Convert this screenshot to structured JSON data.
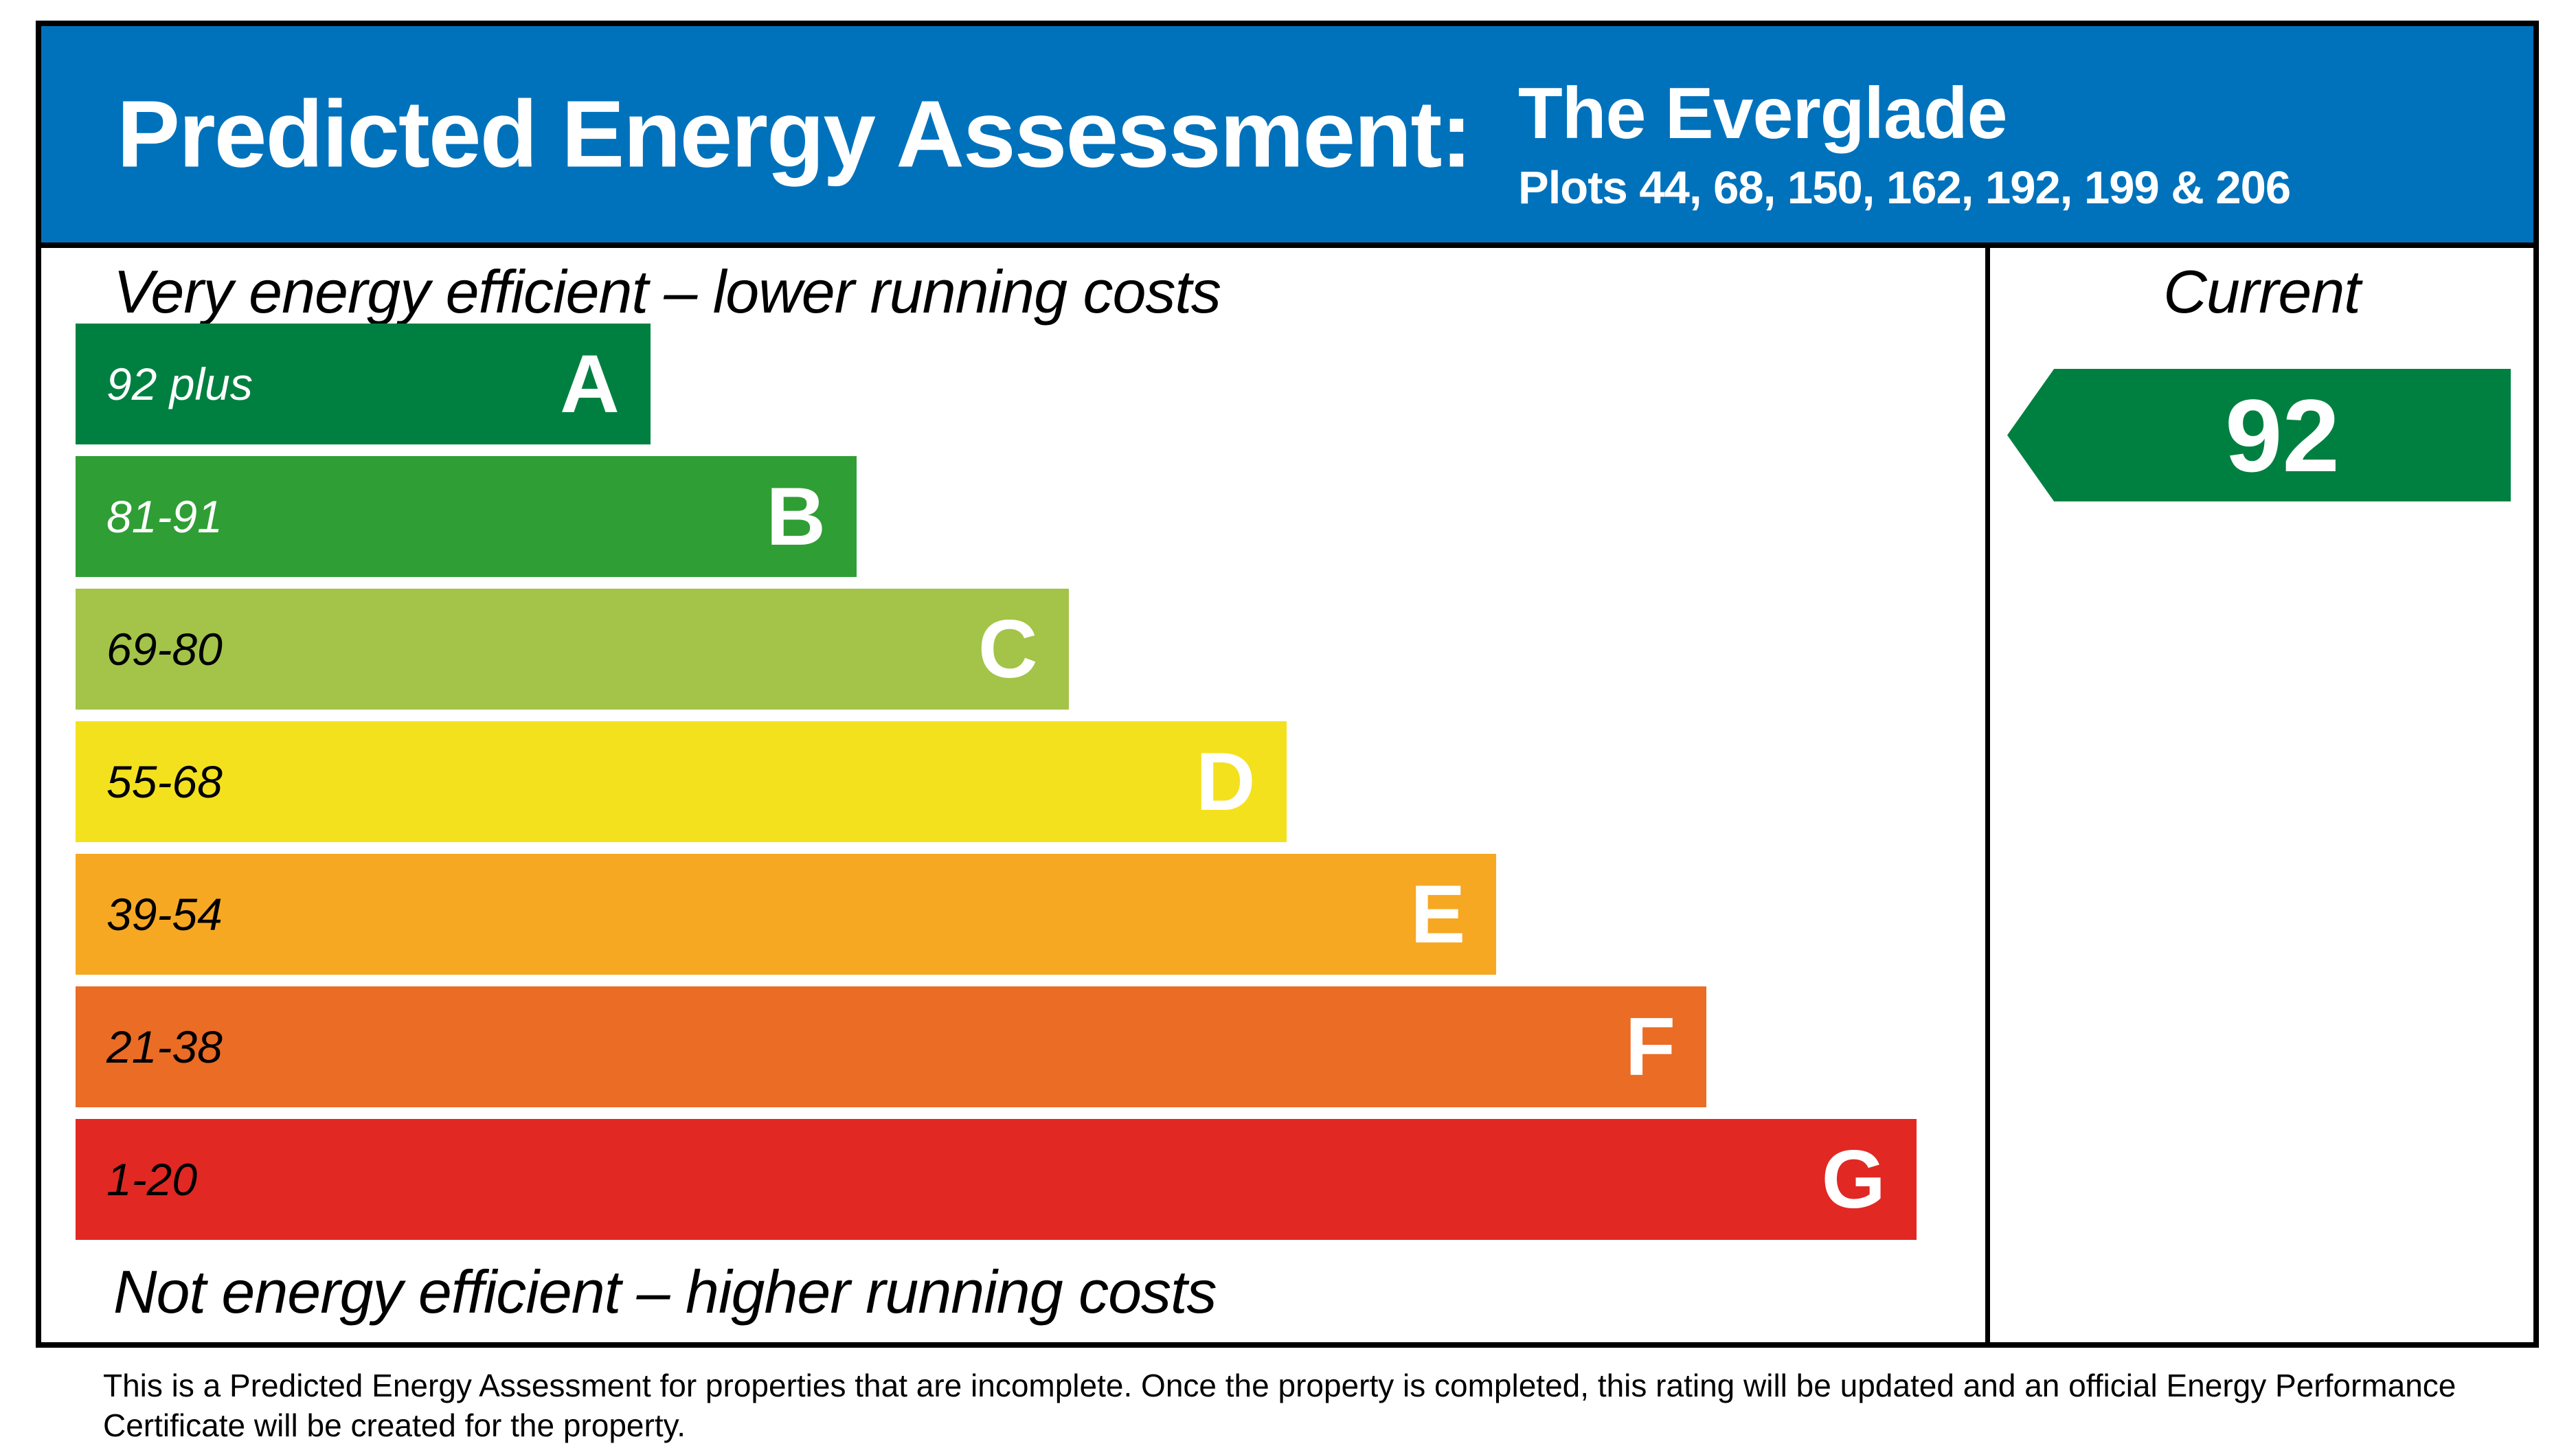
{
  "header": {
    "title": "Predicted Energy Assessment:",
    "property_name": "The Everglade",
    "plots": "Plots 44, 68, 150, 162, 192, 199 & 206",
    "background": "#0072bc",
    "text_color": "#ffffff"
  },
  "chart_data": {
    "type": "bar",
    "title": "Predicted Energy Assessment",
    "top_caption": "Very energy efficient – lower running costs",
    "bottom_caption": "Not energy efficient – higher running costs",
    "xlabel": "",
    "ylabel": "",
    "legend_position": "none",
    "grid": false,
    "categories": [
      "A",
      "B",
      "C",
      "D",
      "E",
      "F",
      "G"
    ],
    "bands": [
      {
        "letter": "A",
        "range": "92 plus",
        "min": 92,
        "max": 100,
        "color": "#008040",
        "range_color": "#ffffff",
        "width_frac": 0.301
      },
      {
        "letter": "B",
        "range": "81-91",
        "min": 81,
        "max": 91,
        "color": "#2f9e35",
        "range_color": "#ffffff",
        "width_frac": 0.409
      },
      {
        "letter": "C",
        "range": "69-80",
        "min": 69,
        "max": 80,
        "color": "#a3c449",
        "range_color": "#000000",
        "width_frac": 0.52
      },
      {
        "letter": "D",
        "range": "55-68",
        "min": 55,
        "max": 68,
        "color": "#f3e11e",
        "range_color": "#000000",
        "width_frac": 0.634
      },
      {
        "letter": "E",
        "range": "39-54",
        "min": 39,
        "max": 54,
        "color": "#f6a823",
        "range_color": "#000000",
        "width_frac": 0.744
      },
      {
        "letter": "F",
        "range": "21-38",
        "min": 21,
        "max": 38,
        "color": "#ea6c25",
        "range_color": "#000000",
        "width_frac": 0.854
      },
      {
        "letter": "G",
        "range": "1-20",
        "min": 1,
        "max": 20,
        "color": "#e12823",
        "range_color": "#000000",
        "width_frac": 0.964
      }
    ],
    "current": {
      "label": "Current",
      "value": "92",
      "band": "A",
      "color": "#008040"
    }
  },
  "footer": {
    "text": "This is a Predicted Energy Assessment for properties that are incomplete. Once the property is completed, this rating will be updated and an official Energy Performance Certificate will be created for the property."
  }
}
